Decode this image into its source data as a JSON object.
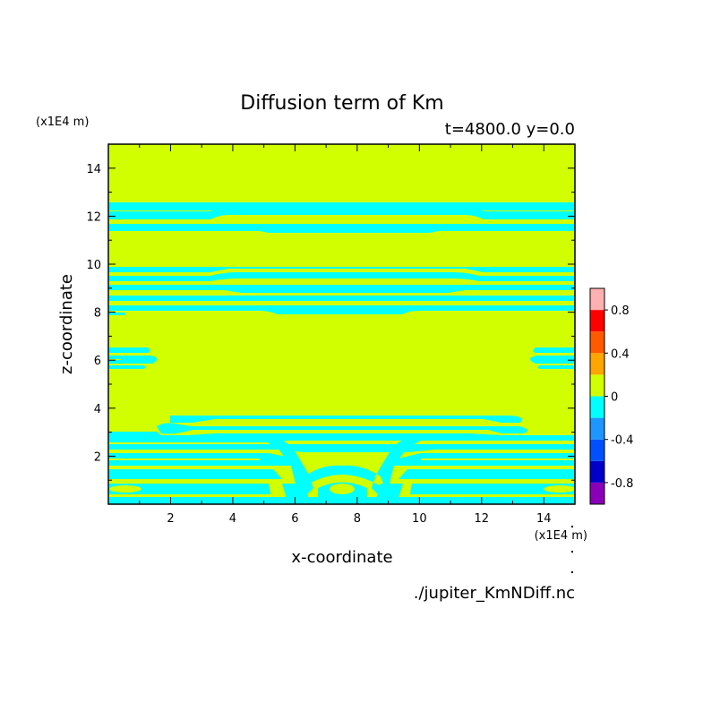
{
  "chart_data": {
    "type": "heatmap",
    "title": "Diffusion term of Km",
    "subtitle": "t=4800.0 y=0.0",
    "xlabel": "x-coordinate",
    "ylabel": "z-coordinate",
    "x_unit": "(x1E4 m)",
    "y_unit": "(x1E4 m)",
    "source_file": "./jupiter_KmNDiff.nc",
    "xlim": [
      0,
      15
    ],
    "ylim": [
      0,
      15
    ],
    "x_ticks": [
      "2",
      "4",
      "6",
      "8",
      "10",
      "12",
      "14"
    ],
    "y_ticks": [
      "2",
      "4",
      "6",
      "8",
      "10",
      "12",
      "14"
    ],
    "colorbar": {
      "levels": [
        -1.0,
        -0.8,
        -0.6,
        -0.4,
        -0.2,
        0,
        0.2,
        0.4,
        0.6,
        0.8,
        1.0
      ],
      "colors": [
        "#8a00b8",
        "#0000c8",
        "#0050ff",
        "#1e96ff",
        "#00ffff",
        "#d2ff00",
        "#ffa500",
        "#ff5a00",
        "#ff0000",
        "#ffb0b0"
      ],
      "tick_labels": [
        "-0.8",
        "-0.4",
        "0",
        "0.4",
        "0.8"
      ]
    },
    "background_color": "#d2ff00",
    "band_color": "#00ffff",
    "bands_zmin_zmax": [
      [
        12.3,
        12.5
      ],
      [
        11.95,
        12.2
      ],
      [
        11.45,
        11.7
      ],
      [
        9.6,
        9.8
      ],
      [
        9.25,
        9.45
      ],
      [
        8.85,
        9.05
      ],
      [
        8.45,
        8.65
      ],
      [
        7.95,
        8.15
      ],
      [
        6.3,
        6.5
      ],
      [
        5.8,
        6.0
      ],
      [
        3.4,
        3.6
      ],
      [
        2.9,
        3.1
      ],
      [
        2.55,
        2.75
      ],
      [
        2.15,
        2.35
      ],
      [
        1.75,
        1.95
      ],
      [
        1.35,
        1.55
      ],
      [
        0.95,
        1.15
      ],
      [
        0.55,
        0.75
      ],
      [
        0.1,
        0.35
      ]
    ]
  }
}
